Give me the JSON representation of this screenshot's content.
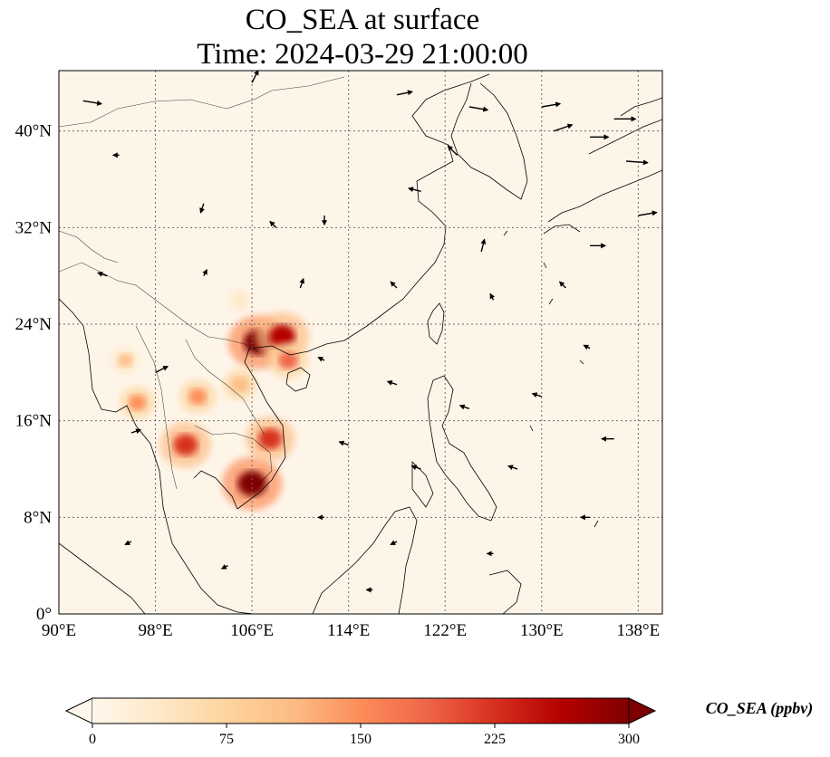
{
  "title": {
    "line1": "CO_SEA at surface",
    "line2": "Time: 2024-03-29 21:00:00"
  },
  "map": {
    "lon_range": [
      90,
      140
    ],
    "lat_range": [
      0,
      45
    ],
    "lon_ticks": [
      "90°E",
      "98°E",
      "106°E",
      "114°E",
      "122°E",
      "130°E",
      "138°E"
    ],
    "lat_ticks": [
      "0°",
      "8°N",
      "16°N",
      "24°N",
      "32°N",
      "40°N"
    ],
    "gridlines": true,
    "field_colormap": "OrRd",
    "background_color": "#fef5e9",
    "coastline_color": "#000000",
    "wind_arrow_color": "#000000"
  },
  "colorbar": {
    "ticks": [
      "0",
      "75",
      "150",
      "225",
      "300"
    ],
    "min": 0,
    "max": 300,
    "extend": "both",
    "label": "CO_SEA (ppbv)",
    "colors": [
      "#fff7ec",
      "#fee8c8",
      "#fdd49e",
      "#fdbb84",
      "#fc8d59",
      "#ef6548",
      "#d7301f",
      "#b30000",
      "#7f0000"
    ]
  },
  "chart_data": {
    "type": "heatmap",
    "variable": "CO_SEA",
    "level": "surface",
    "time": "2024-03-29 21:00:00",
    "units": "ppbv",
    "hotspots": [
      {
        "lon": 106.5,
        "lat": 22.5,
        "value": 300
      },
      {
        "lon": 108.5,
        "lat": 23.0,
        "value": 260
      },
      {
        "lon": 106.0,
        "lat": 10.8,
        "value": 300
      },
      {
        "lon": 107.5,
        "lat": 14.5,
        "value": 230
      },
      {
        "lon": 100.5,
        "lat": 14.0,
        "value": 240
      },
      {
        "lon": 109.0,
        "lat": 21.0,
        "value": 170
      },
      {
        "lon": 101.5,
        "lat": 18.0,
        "value": 150
      },
      {
        "lon": 96.5,
        "lat": 17.5,
        "value": 140
      },
      {
        "lon": 95.5,
        "lat": 21.0,
        "value": 100
      },
      {
        "lon": 105.0,
        "lat": 19.0,
        "value": 130
      },
      {
        "lon": 105.0,
        "lat": 26.0,
        "value": 55
      }
    ],
    "wind_vectors": [
      {
        "lon": 92,
        "lat": 42.5,
        "u": 6,
        "v": -1
      },
      {
        "lon": 106,
        "lat": 44,
        "u": 2,
        "v": 4
      },
      {
        "lon": 118,
        "lat": 43,
        "u": 5,
        "v": 1
      },
      {
        "lon": 124,
        "lat": 42,
        "u": 6,
        "v": -1
      },
      {
        "lon": 130,
        "lat": 42,
        "u": 6,
        "v": 1
      },
      {
        "lon": 136,
        "lat": 41,
        "u": 7,
        "v": 0
      },
      {
        "lon": 131,
        "lat": 40,
        "u": 6,
        "v": 2
      },
      {
        "lon": 134,
        "lat": 39.5,
        "u": 6,
        "v": 0
      },
      {
        "lon": 137,
        "lat": 37.5,
        "u": 7,
        "v": -0.5
      },
      {
        "lon": 138,
        "lat": 33,
        "u": 6,
        "v": 1
      },
      {
        "lon": 134,
        "lat": 30.5,
        "u": 5,
        "v": 0
      },
      {
        "lon": 123,
        "lat": 38,
        "u": -3,
        "v": 3
      },
      {
        "lon": 120,
        "lat": 35,
        "u": -4,
        "v": 1
      },
      {
        "lon": 125,
        "lat": 30,
        "u": 1,
        "v": 4
      },
      {
        "lon": 112,
        "lat": 33,
        "u": 0,
        "v": -3
      },
      {
        "lon": 108,
        "lat": 32,
        "u": -2,
        "v": 2
      },
      {
        "lon": 102,
        "lat": 34,
        "u": -1,
        "v": -3
      },
      {
        "lon": 95,
        "lat": 38,
        "u": -2,
        "v": 0
      },
      {
        "lon": 94,
        "lat": 28,
        "u": -3,
        "v": 1
      },
      {
        "lon": 102,
        "lat": 28,
        "u": 1,
        "v": 2
      },
      {
        "lon": 110,
        "lat": 27,
        "u": 1,
        "v": 3
      },
      {
        "lon": 118,
        "lat": 27,
        "u": -2,
        "v": 2
      },
      {
        "lon": 126,
        "lat": 26,
        "u": -1,
        "v": 2
      },
      {
        "lon": 132,
        "lat": 27,
        "u": -2,
        "v": 2
      },
      {
        "lon": 98,
        "lat": 20,
        "u": 4,
        "v": 2
      },
      {
        "lon": 96,
        "lat": 15,
        "u": 3,
        "v": 1
      },
      {
        "lon": 112,
        "lat": 21,
        "u": -2,
        "v": 1
      },
      {
        "lon": 118,
        "lat": 19,
        "u": -3,
        "v": 1
      },
      {
        "lon": 124,
        "lat": 17,
        "u": -3,
        "v": 1
      },
      {
        "lon": 130,
        "lat": 18,
        "u": -3,
        "v": 1
      },
      {
        "lon": 136,
        "lat": 14.5,
        "u": -4,
        "v": 0
      },
      {
        "lon": 114,
        "lat": 14,
        "u": -3,
        "v": 1
      },
      {
        "lon": 120,
        "lat": 12,
        "u": -3,
        "v": 1
      },
      {
        "lon": 128,
        "lat": 12,
        "u": -3,
        "v": 1
      },
      {
        "lon": 112,
        "lat": 8,
        "u": -2,
        "v": 0
      },
      {
        "lon": 118,
        "lat": 6,
        "u": -2,
        "v": -1
      },
      {
        "lon": 96,
        "lat": 6,
        "u": -2,
        "v": -1
      },
      {
        "lon": 104,
        "lat": 4,
        "u": -2,
        "v": -1
      },
      {
        "lon": 126,
        "lat": 5,
        "u": -2,
        "v": 0
      },
      {
        "lon": 134,
        "lat": 8,
        "u": -3,
        "v": 0
      },
      {
        "lon": 116,
        "lat": 2,
        "u": -2,
        "v": 0
      },
      {
        "lon": 134,
        "lat": 22,
        "u": -2,
        "v": 1
      }
    ]
  }
}
